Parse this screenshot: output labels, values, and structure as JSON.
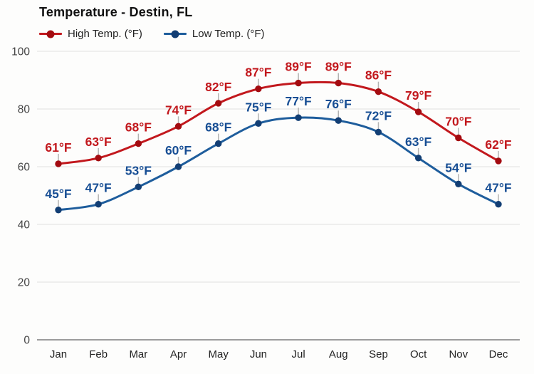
{
  "title": "Temperature - Destin, FL",
  "chart_data": {
    "type": "line",
    "title": "Temperature - Destin, FL",
    "categories": [
      "Jan",
      "Feb",
      "Mar",
      "Apr",
      "May",
      "Jun",
      "Jul",
      "Aug",
      "Sep",
      "Oct",
      "Nov",
      "Dec"
    ],
    "series": [
      {
        "name": "High Temp. (°F)",
        "values": [
          61,
          63,
          68,
          74,
          82,
          87,
          89,
          89,
          86,
          79,
          70,
          62
        ],
        "color": "#c2181d",
        "marker_color": "#a30b10",
        "label_color": "#c2181d"
      },
      {
        "name": "Low Temp. (°F)",
        "values": [
          45,
          47,
          53,
          60,
          68,
          75,
          77,
          76,
          72,
          63,
          54,
          47
        ],
        "color": "#1e5d9c",
        "marker_color": "#123e74",
        "label_color": "#174e94"
      }
    ],
    "point_label_suffix": "°F",
    "xlabel": "",
    "ylabel": "",
    "yticks": [
      0,
      20,
      40,
      60,
      80,
      100
    ],
    "ylim": [
      0,
      100
    ],
    "grid": true,
    "grid_color": "#e1e1e0",
    "axis_color": "#3c3c3c",
    "tick_label_color": "#444444",
    "month_label_color": "#222222",
    "connector_color": "#b3b3b3",
    "legend_position": "top-left"
  }
}
